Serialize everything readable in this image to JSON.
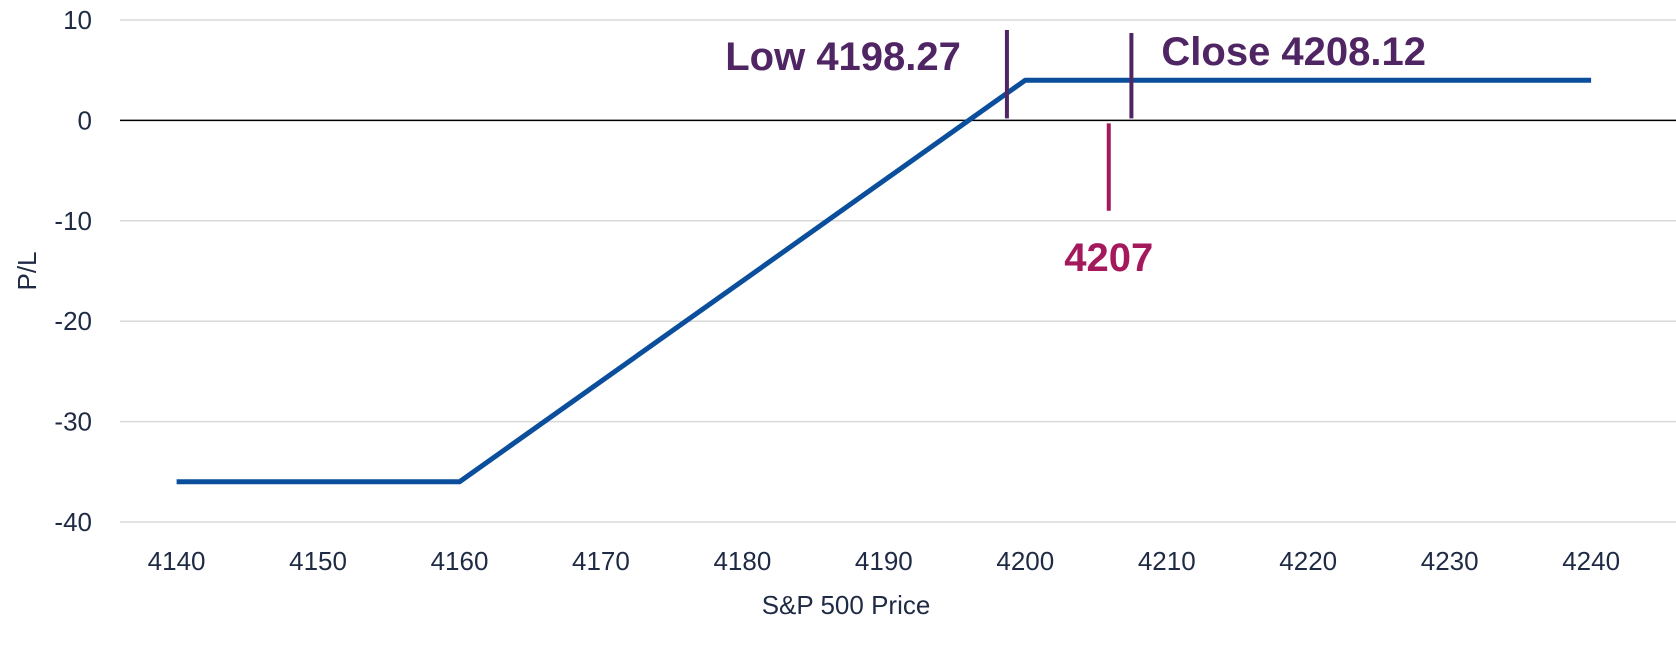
{
  "chart_data": {
    "type": "line",
    "title": "",
    "xlabel": "S&P 500 Price",
    "ylabel": "P/L",
    "xlim": [
      4136,
      4246
    ],
    "ylim": [
      -40,
      10
    ],
    "x_ticks": [
      4140,
      4150,
      4160,
      4170,
      4180,
      4190,
      4200,
      4210,
      4220,
      4230,
      4240
    ],
    "y_ticks": [
      10,
      0,
      -10,
      -20,
      -30,
      -40
    ],
    "grid": true,
    "legend": "none",
    "series": [
      {
        "color": "#0b4f9c",
        "points": [
          {
            "x": 4140,
            "y": -36
          },
          {
            "x": 4160,
            "y": -36
          },
          {
            "x": 4200,
            "y": 4
          },
          {
            "x": 4240,
            "y": 4
          }
        ]
      }
    ],
    "annotations": [
      {
        "label": "Low 4198.27",
        "x": 4198.7,
        "y_range": [
          0.2,
          9
        ],
        "color": "#4f2563",
        "label_side": "left"
      },
      {
        "label": "Close 4208.12",
        "x": 4207.5,
        "y_range": [
          0.2,
          8.7
        ],
        "color": "#4f2563",
        "label_side": "right"
      },
      {
        "label": "4207",
        "x": 4205.9,
        "y_range": [
          -9,
          -0.3
        ],
        "color": "#a3195b",
        "label_side": "below"
      }
    ]
  }
}
